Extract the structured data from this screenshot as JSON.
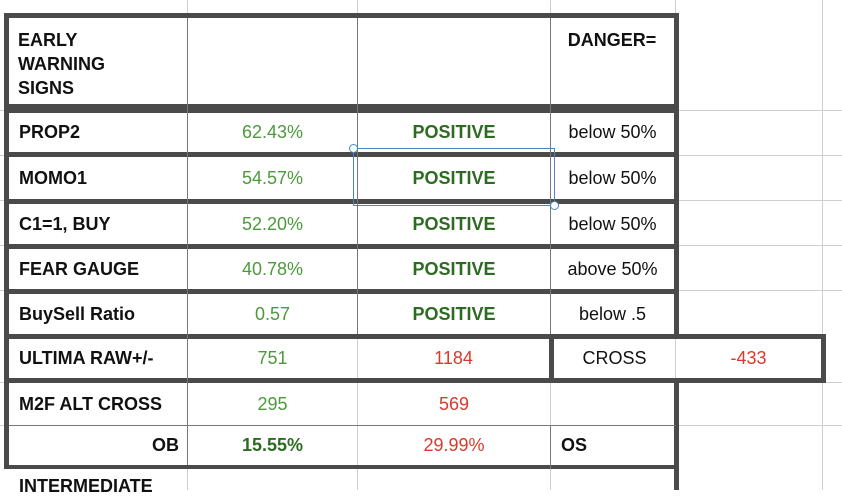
{
  "table": {
    "header": {
      "title": "EARLY\nWARNING\nSIGNS",
      "danger": "DANGER="
    },
    "rows": [
      {
        "label": "PROP2",
        "value": "62.43%",
        "status": "POSITIVE",
        "threshold": "below 50%"
      },
      {
        "label": "MOMO1",
        "value": "54.57%",
        "status": "POSITIVE",
        "threshold": "below 50%"
      },
      {
        "label": "C1=1, BUY",
        "value": "52.20%",
        "status": "POSITIVE",
        "threshold": "below 50%"
      },
      {
        "label": "FEAR GAUGE",
        "value": "40.78%",
        "status": "POSITIVE",
        "threshold": "above 50%"
      },
      {
        "label": "BuySell Ratio",
        "value": "0.57",
        "status": "POSITIVE",
        "threshold": "below .5"
      }
    ],
    "ultima": {
      "label": "ULTIMA RAW+/-",
      "plus": "751",
      "minus": "1184",
      "cross_label": "CROSS",
      "cross_value": "-433"
    },
    "m2f": {
      "label": "M2F ALT CROSS",
      "plus": "295",
      "minus": "569"
    },
    "ob": {
      "label": "OB",
      "plus": "15.55%",
      "minus": "29.99%",
      "os_label": "OS"
    },
    "next_label": "INTERMEDIATE"
  },
  "colors": {
    "positive_green": "#4d9a3c",
    "status_green": "#2d6b22",
    "negative_red": "#d93a2b",
    "border": "#4a4a4a",
    "selection": "#4a86c7"
  }
}
